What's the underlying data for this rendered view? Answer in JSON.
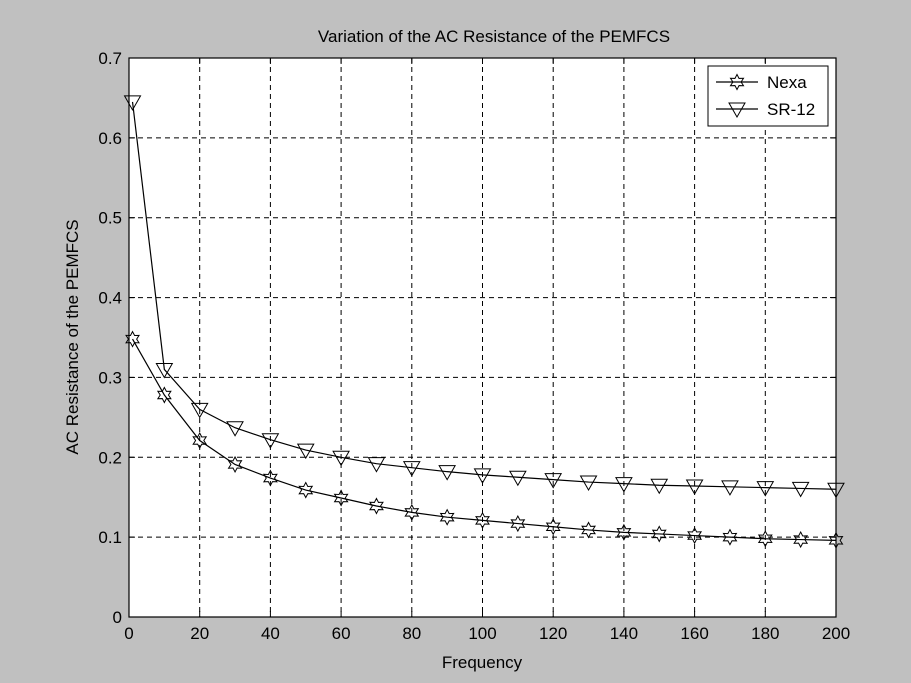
{
  "chart_data": {
    "type": "line",
    "title": "Variation of the AC Resistance of the PEMFCS",
    "xlabel": "Frequency",
    "ylabel": "AC Resistance of the PEMFCS",
    "xlim": [
      0,
      200
    ],
    "ylim": [
      0,
      0.7
    ],
    "xticks": [
      0,
      20,
      40,
      60,
      80,
      100,
      120,
      140,
      160,
      180,
      200
    ],
    "yticks": [
      0,
      0.1,
      0.2,
      0.3,
      0.4,
      0.5,
      0.6,
      0.7
    ],
    "grid": true,
    "legend_position": "top-right",
    "x": [
      1,
      10,
      20,
      30,
      40,
      50,
      60,
      70,
      80,
      90,
      100,
      110,
      120,
      130,
      140,
      150,
      160,
      170,
      180,
      190,
      200
    ],
    "series": [
      {
        "name": "Nexa",
        "marker": "hexagram",
        "color": "#000000",
        "values": [
          0.348,
          0.278,
          0.221,
          0.191,
          0.174,
          0.159,
          0.149,
          0.139,
          0.131,
          0.125,
          0.121,
          0.117,
          0.113,
          0.109,
          0.106,
          0.104,
          0.102,
          0.1,
          0.098,
          0.097,
          0.096
        ]
      },
      {
        "name": "SR-12",
        "marker": "triangle-down",
        "color": "#000000",
        "values": [
          0.645,
          0.31,
          0.26,
          0.237,
          0.222,
          0.209,
          0.2,
          0.192,
          0.187,
          0.182,
          0.178,
          0.175,
          0.172,
          0.169,
          0.167,
          0.165,
          0.164,
          0.163,
          0.162,
          0.161,
          0.16
        ]
      }
    ]
  }
}
